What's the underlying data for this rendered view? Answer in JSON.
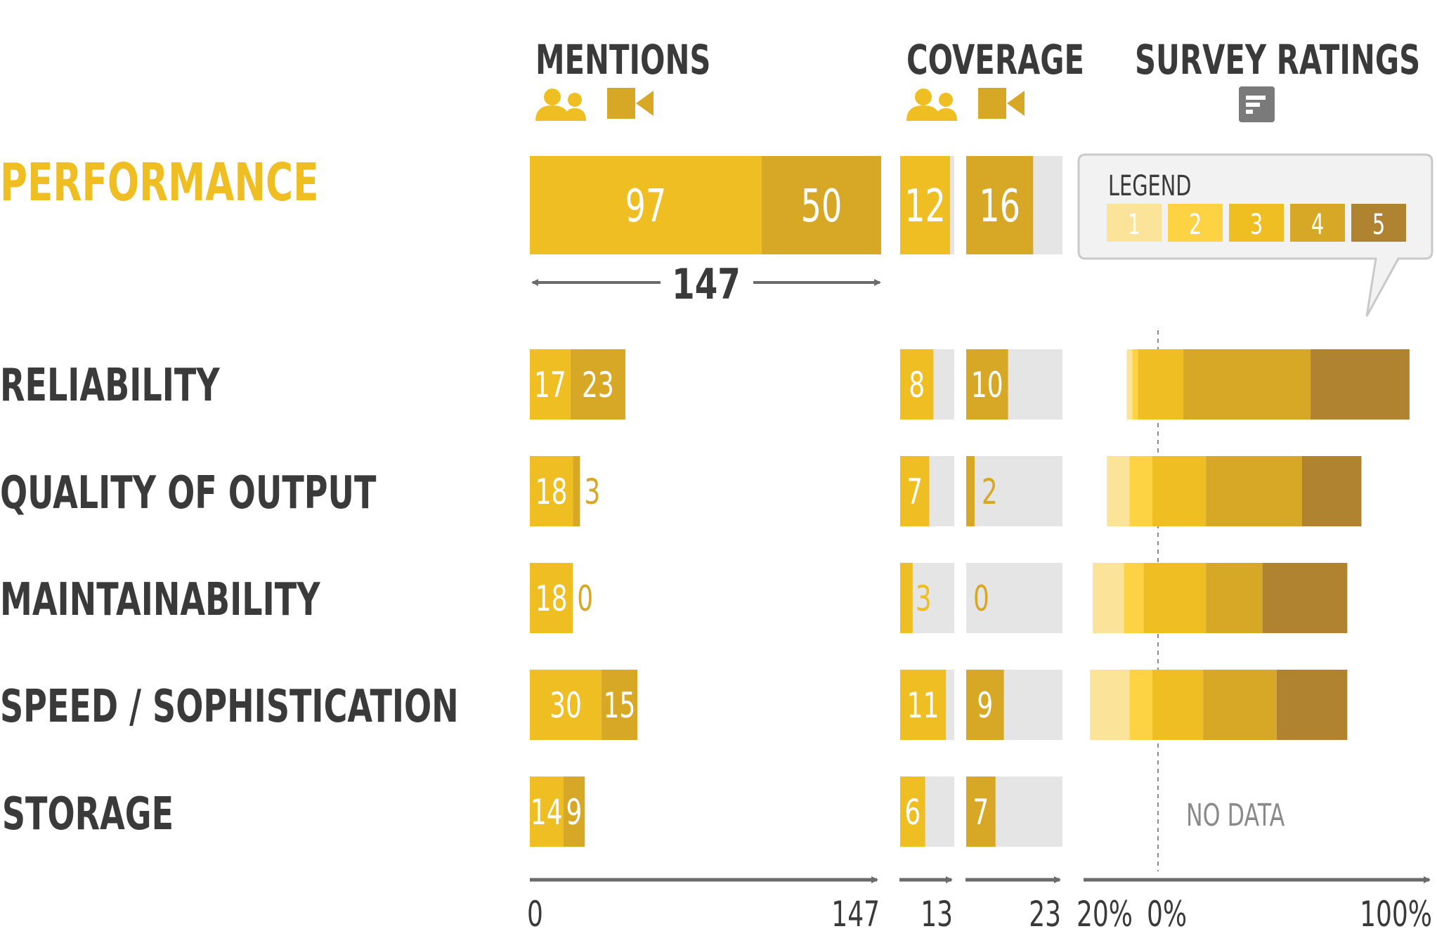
{
  "headers": {
    "mentions": "MENTIONS",
    "coverage": "COVERAGE",
    "survey": "SURVEY RATINGS"
  },
  "legend": {
    "title": "LEGEND",
    "levels": [
      "1",
      "2",
      "3",
      "4",
      "5"
    ]
  },
  "no_data_label": "NO DATA",
  "axes": {
    "mentions": {
      "min_label": "0",
      "max_label": "147",
      "max": 147
    },
    "coverage_users": {
      "max_label": "13",
      "max": 13
    },
    "coverage_video": {
      "max_label": "23",
      "max": 23
    },
    "survey": {
      "neg_label": "20%",
      "zero_label": "0%",
      "max_label": "100%"
    }
  },
  "colors": {
    "users": "#EFBE22",
    "video": "#D6A826",
    "track": "#E5E5E6",
    "text_dark": "#3A3A3A",
    "accent_title": "#EFBE22",
    "arrow": "#6B6B6B",
    "icon_gray": "#7A7A7A",
    "nodata": "#8A8A8A",
    "rating_1": "#FBE49A",
    "rating_2": "#FDD344",
    "rating_3": "#EFBE22",
    "rating_4": "#D6A826",
    "rating_5": "#B08330"
  },
  "icons": {
    "users": "people-icon",
    "video": "video-camera-icon",
    "survey": "document-icon"
  },
  "chart_data": {
    "type": "bar",
    "title": "PERFORMANCE",
    "total_mentions_label": "147",
    "total_mentions": 147,
    "categories": [
      "PERFORMANCE",
      "RELIABILITY",
      "QUALITY OF OUTPUT",
      "MAINTAINABILITY",
      "SPEED / SOPHISTICATION",
      "STORAGE"
    ],
    "mentions": {
      "users": [
        97,
        17,
        18,
        18,
        30,
        14
      ],
      "video": [
        50,
        23,
        3,
        0,
        15,
        9
      ]
    },
    "coverage": {
      "users": [
        12,
        8,
        7,
        3,
        11,
        6
      ],
      "video": [
        16,
        10,
        2,
        0,
        9,
        7
      ]
    },
    "survey_ratings": [
      null,
      [
        2,
        4,
        20,
        65,
        100
      ],
      [
        8,
        16,
        35,
        69,
        90
      ],
      [
        11,
        18,
        40,
        60,
        90
      ],
      [
        14,
        22,
        40,
        66,
        91
      ],
      null
    ],
    "survey_range": [
      -20,
      100
    ]
  }
}
